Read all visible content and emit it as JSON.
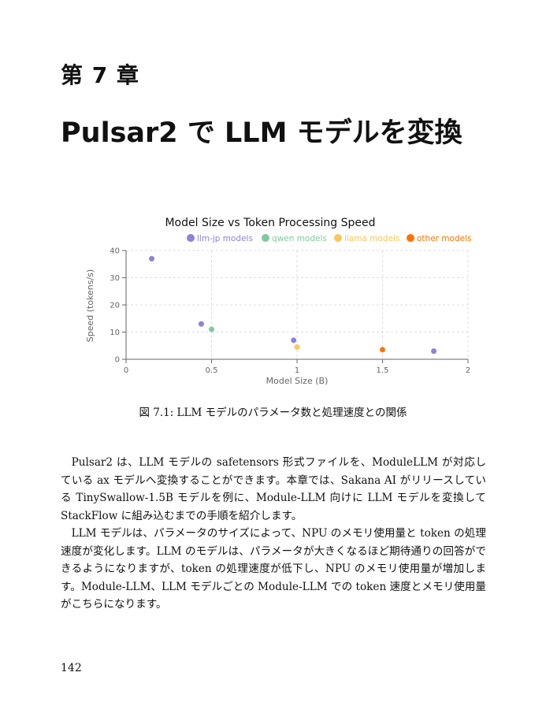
{
  "chapter": {
    "label": "第 7 章",
    "title": "Pulsar2 で LLM モデルを変換"
  },
  "figure": {
    "caption": "図 7.1: LLM モデルのパラメータ数と処理速度との関係"
  },
  "chart_data": {
    "type": "scatter",
    "title": "Model Size vs Token Processing Speed",
    "xlabel": "Model Size (B)",
    "ylabel": "Speed (tokens/s)",
    "xlim": [
      0,
      2
    ],
    "ylim": [
      0,
      40
    ],
    "xticks": [
      "0",
      "0.5",
      "1",
      "1.5",
      "2"
    ],
    "yticks": [
      "0",
      "10",
      "20",
      "30",
      "40"
    ],
    "xtick_values": [
      0,
      0.5,
      1,
      1.5,
      2
    ],
    "ytick_values": [
      0,
      10,
      20,
      30,
      40
    ],
    "grid": true,
    "legend_position": "top",
    "series": [
      {
        "name": "llm-jp models",
        "color": "#8b84d7",
        "points": [
          [
            0.15,
            37
          ],
          [
            0.44,
            13
          ],
          [
            0.98,
            7
          ],
          [
            1.8,
            3
          ]
        ]
      },
      {
        "name": "qwen models",
        "color": "#82ca9d",
        "points": [
          [
            0.5,
            11
          ]
        ]
      },
      {
        "name": "llama models",
        "color": "#ffc658",
        "points": [
          [
            1.0,
            4.5
          ]
        ]
      },
      {
        "name": "other models",
        "color": "#ff7300",
        "points": [
          [
            1.5,
            3.5
          ]
        ]
      }
    ]
  },
  "body": {
    "paragraphs": [
      "Pulsar2 は、LLM モデルの safetensors 形式ファイルを、ModuleLLM が対応している ax モデルへ変換することができます。本章では、Sakana AI がリリースしている TinySwallow-1.5B モデルを例に、Module-LLM 向けに LLM モデルを変換して StackFlow に組み込むまでの手順を紹介します。",
      "LLM モデルは、パラメータのサイズによって、NPU のメモリ使用量と token の処理速度が変化します。LLM のモデルは、パラメータが大きくなるほど期待通りの回答ができるようになりますが、token の処理速度が低下し、NPU のメモリ使用量が増加します。Module-LLM、LLM モデルごとの Module-LLM での token 速度とメモリ使用量がこちらになります。"
    ]
  },
  "page_number": "142"
}
